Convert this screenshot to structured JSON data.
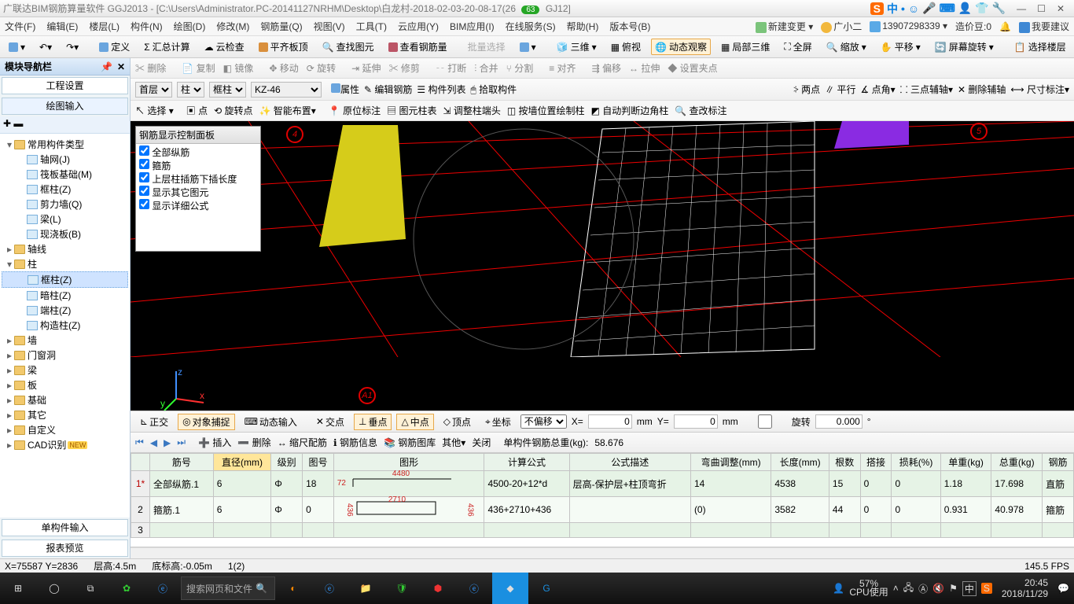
{
  "title": "广联达BIM钢筋算量软件 GGJ2013 - [C:\\Users\\Administrator.PC-20141127NRHM\\Desktop\\白龙村-2018-02-03-20-08-17(26",
  "title_tail": "GJ12]",
  "badge": "63",
  "ime": [
    "中",
    "☺",
    "🎤",
    "⌨",
    "👤",
    "👕",
    "🔧"
  ],
  "menus": [
    "文件(F)",
    "编辑(E)",
    "楼层(L)",
    "构件(N)",
    "绘图(D)",
    "修改(M)",
    "钢筋量(Q)",
    "视图(V)",
    "工具(T)",
    "云应用(Y)",
    "BIM应用(I)",
    "在线服务(S)",
    "帮助(H)",
    "版本号(B)"
  ],
  "menu_right": {
    "new": "新建变更",
    "user": "广小二",
    "phone": "13907298339",
    "coins": "造价豆:0",
    "suggest": "我要建议"
  },
  "main_toolbar": [
    "定义",
    "汇总计算",
    "云检查",
    "平齐板顶",
    "查找图元",
    "查看钢筋量",
    "批量选择",
    "",
    "三维",
    "俯视",
    "动态观察",
    "局部三维",
    "全屏",
    "缩放",
    "平移",
    "屏幕旋转",
    "选择楼层"
  ],
  "left_panel": {
    "title": "模块导航栏",
    "tabs": [
      "工程设置",
      "绘图输入"
    ]
  },
  "tree": [
    {
      "d": 0,
      "tw": "▾",
      "ic": "fld",
      "label": "常用构件类型"
    },
    {
      "d": 1,
      "tw": "",
      "ic": "tic",
      "label": "轴网(J)"
    },
    {
      "d": 1,
      "tw": "",
      "ic": "tic",
      "label": "筏板基础(M)"
    },
    {
      "d": 1,
      "tw": "",
      "ic": "tic",
      "label": "框柱(Z)"
    },
    {
      "d": 1,
      "tw": "",
      "ic": "tic",
      "label": "剪力墙(Q)"
    },
    {
      "d": 1,
      "tw": "",
      "ic": "tic",
      "label": "梁(L)"
    },
    {
      "d": 1,
      "tw": "",
      "ic": "tic",
      "label": "现浇板(B)"
    },
    {
      "d": 0,
      "tw": "▸",
      "ic": "fld",
      "label": "轴线"
    },
    {
      "d": 0,
      "tw": "▾",
      "ic": "fld",
      "label": "柱"
    },
    {
      "d": 1,
      "tw": "",
      "ic": "tic",
      "label": "框柱(Z)",
      "sel": true
    },
    {
      "d": 1,
      "tw": "",
      "ic": "tic",
      "label": "暗柱(Z)"
    },
    {
      "d": 1,
      "tw": "",
      "ic": "tic",
      "label": "端柱(Z)"
    },
    {
      "d": 1,
      "tw": "",
      "ic": "tic",
      "label": "构造柱(Z)"
    },
    {
      "d": 0,
      "tw": "▸",
      "ic": "fld",
      "label": "墙"
    },
    {
      "d": 0,
      "tw": "▸",
      "ic": "fld",
      "label": "门窗洞"
    },
    {
      "d": 0,
      "tw": "▸",
      "ic": "fld",
      "label": "梁"
    },
    {
      "d": 0,
      "tw": "▸",
      "ic": "fld",
      "label": "板"
    },
    {
      "d": 0,
      "tw": "▸",
      "ic": "fld",
      "label": "基础"
    },
    {
      "d": 0,
      "tw": "▸",
      "ic": "fld",
      "label": "其它"
    },
    {
      "d": 0,
      "tw": "▸",
      "ic": "fld",
      "label": "自定义"
    },
    {
      "d": 0,
      "tw": "▸",
      "ic": "fld",
      "label": "CAD识别",
      "new": "NEW"
    }
  ],
  "left_bottom_tabs": [
    "单构件输入",
    "报表预览"
  ],
  "edit_bar": [
    "删除",
    "复制",
    "镜像",
    "移动",
    "旋转",
    "延伸",
    "修剪",
    "打断",
    "合并",
    "分割",
    "对齐",
    "偏移",
    "拉伸",
    "设置夹点"
  ],
  "floor_bar": {
    "floor": "首层",
    "type": "柱",
    "sub": "框柱",
    "code": "KZ-46",
    "btns": [
      "属性",
      "编辑钢筋",
      "构件列表",
      "拾取构件"
    ],
    "right": [
      "两点",
      "平行",
      "点角",
      "三点辅轴",
      "删除辅轴",
      "尺寸标注"
    ]
  },
  "opt_bar": [
    "选择",
    "点",
    "旋转点",
    "智能布置",
    "原位标注",
    "图元柱表",
    "调整柱端头",
    "按墙位置绘制柱",
    "自动判断边角柱",
    "查改标注"
  ],
  "float_panel": {
    "title": "钢筋显示控制面板",
    "items": [
      "全部纵筋",
      "箍筋",
      "上层柱插筋下插长度",
      "显示其它图元",
      "显示详细公式"
    ]
  },
  "axis_markers": {
    "a4": "4",
    "a5": "5",
    "aA1": "A1"
  },
  "snap_bar": {
    "items": [
      "正交",
      "对象捕捉",
      "动态输入",
      "交点",
      "垂点",
      "中点",
      "顶点",
      "坐标",
      "不偏移"
    ],
    "pressed": [
      "对象捕捉",
      "垂点",
      "中点"
    ],
    "X": "0",
    "Y": "0",
    "unit": "mm",
    "rot_label": "旋转",
    "rot": "0.000"
  },
  "rebar_bar": {
    "btns": [
      "插入",
      "删除",
      "缩尺配筋",
      "钢筋信息",
      "钢筋图库",
      "其他",
      "关闭"
    ],
    "weight_label": "单构件钢筋总重(kg):",
    "weight": "58.676"
  },
  "grid": {
    "headers": [
      "",
      "筋号",
      "直径(mm)",
      "级别",
      "图号",
      "图形",
      "计算公式",
      "公式描述",
      "弯曲调整(mm)",
      "长度(mm)",
      "根数",
      "搭接",
      "损耗(%)",
      "单重(kg)",
      "总重(kg)",
      "钢筋"
    ],
    "hi_col": 2,
    "rows": [
      {
        "n": "1*",
        "cur": true,
        "cells": [
          "全部纵筋.1",
          "6",
          "Φ",
          "18",
          {
            "shape": 1,
            "a": "72",
            "b": "4480"
          },
          "4500-20+12*d",
          "层高-保护层+柱顶弯折",
          "14",
          "4538",
          "15",
          "0",
          "0",
          "1.18",
          "17.698",
          "直筋"
        ]
      },
      {
        "n": "2",
        "cells": [
          "箍筋.1",
          "6",
          "Φ",
          "0",
          {
            "shape": 2,
            "a": "436",
            "b": "2710",
            "c": "436"
          },
          "436+2710+436",
          "",
          "(0)",
          "3582",
          "44",
          "0",
          "0",
          "0.931",
          "40.978",
          "箍筋"
        ]
      },
      {
        "n": "3",
        "cells": [
          "",
          "",
          "",
          "",
          "",
          "",
          "",
          "",
          "",
          "",
          "",
          "",
          "",
          "",
          ""
        ]
      }
    ]
  },
  "status": {
    "xy": "X=75587 Y=2836",
    "floor": "层高:4.5m",
    "bot": "底标高:-0.05m",
    "one2": "1(2)",
    "fps": "145.5 FPS"
  },
  "taskbar": {
    "search_ph": "搜索网页和文件",
    "cpu": "57%",
    "cpu_lbl": "CPU使用",
    "ime": "中",
    "time": "20:45",
    "date": "2018/11/29"
  }
}
